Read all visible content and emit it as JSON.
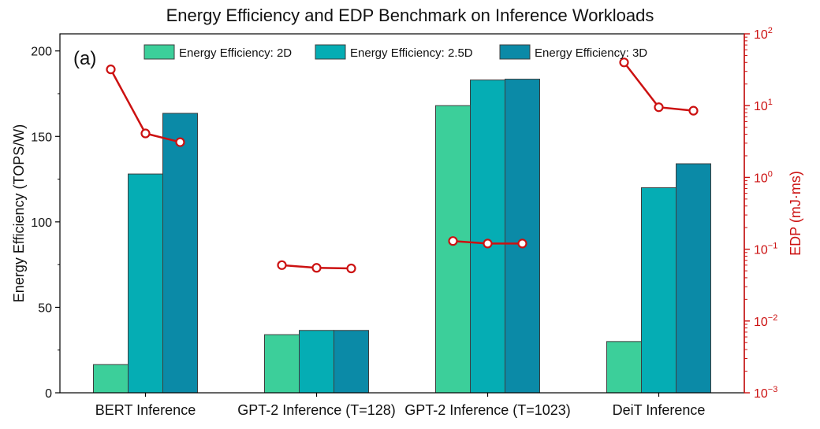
{
  "chart_data": {
    "type": "bar",
    "title": "Energy Efficiency and EDP Benchmark on Inference Workloads",
    "panel_label": "(a)",
    "categories": [
      "BERT Inference",
      "GPT-2 Inference (T=128)",
      "GPT-2 Inference (T=1023)",
      "DeiT Inference"
    ],
    "ylabel": "Energy Efficiency (TOPS/W)",
    "ylim": [
      0,
      210
    ],
    "yticks": [
      0,
      50,
      100,
      150,
      200
    ],
    "y2label": "EDP (mJ·ms)",
    "y2scale": "log",
    "y2lim": [
      0.001,
      100
    ],
    "y2ticks": [
      {
        "base": "10",
        "exp": "2"
      },
      {
        "base": "10",
        "exp": "1"
      },
      {
        "base": "10",
        "exp": "0"
      },
      {
        "base": "10",
        "exp": "−1"
      },
      {
        "base": "10",
        "exp": "−2"
      },
      {
        "base": "10",
        "exp": "−3"
      }
    ],
    "legend_position": "top",
    "series": [
      {
        "name": "Energy Efficiency: 2D",
        "color": "#3ccf9a",
        "values": [
          16.5,
          34,
          168,
          30
        ]
      },
      {
        "name": "Energy Efficiency: 2.5D",
        "color": "#05adb4",
        "values": [
          128,
          36.5,
          183,
          120
        ]
      },
      {
        "name": "Energy Efficiency: 3D",
        "color": "#0b8aa7",
        "values": [
          163.5,
          36.5,
          183.5,
          134
        ]
      }
    ],
    "edp_series": {
      "axis": "right",
      "color": "#cc1111",
      "values": [
        [
          32,
          4.1,
          3.1
        ],
        [
          0.06,
          0.055,
          0.054
        ],
        [
          0.13,
          0.12,
          0.12
        ],
        [
          40,
          9.5,
          8.5
        ]
      ]
    }
  }
}
